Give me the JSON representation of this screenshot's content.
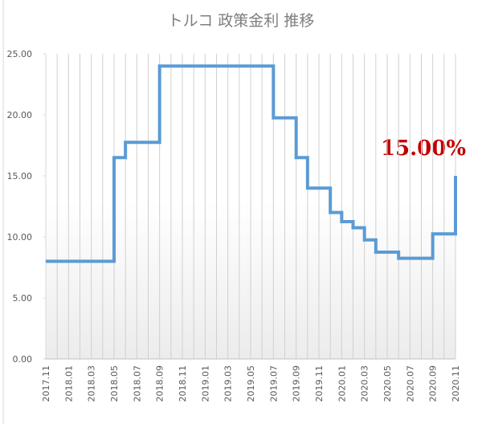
{
  "chart_data": {
    "type": "step",
    "title": "トルコ 政策金利 推移",
    "categories": [
      "2017.11",
      null,
      "2018.01",
      null,
      "2018.03",
      null,
      "2018.05",
      null,
      "2018.07",
      null,
      "2018.09",
      null,
      "2018.11",
      null,
      "2019.01",
      null,
      "2019.03",
      null,
      "2019.05",
      null,
      "2019.07",
      null,
      "2019.09",
      null,
      "2019.11",
      null,
      "2020.01",
      null,
      "2020.03",
      null,
      "2020.05",
      null,
      "2020.07",
      null,
      "2020.09",
      null,
      "2020.11"
    ],
    "values": [
      8,
      8,
      8,
      8,
      8,
      8,
      16.5,
      17.75,
      17.75,
      17.75,
      24,
      24,
      24,
      24,
      24,
      24,
      24,
      24,
      24,
      24,
      19.75,
      19.75,
      16.5,
      14,
      14,
      12,
      11.25,
      10.75,
      9.75,
      8.75,
      8.75,
      8.25,
      8.25,
      8.25,
      10.25,
      10.25,
      15
    ],
    "color": "#5b9bd5",
    "ylim": [
      0,
      25
    ],
    "yticks": [
      {
        "value": 0,
        "label": "0.00"
      },
      {
        "value": 5,
        "label": "5.00"
      },
      {
        "value": 10,
        "label": "10.00"
      },
      {
        "value": 15,
        "label": "15.00"
      },
      {
        "value": 20,
        "label": "20.00"
      },
      {
        "value": 25,
        "label": "25.00"
      }
    ],
    "annotation": "15.00%"
  }
}
